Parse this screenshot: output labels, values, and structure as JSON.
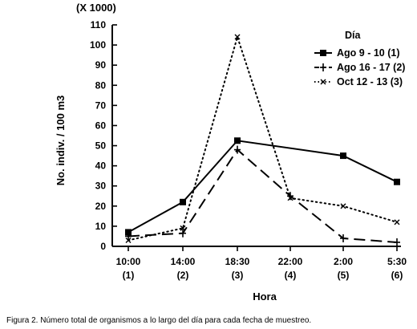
{
  "chart_data": {
    "type": "line",
    "multiplier_label": "(X 1000)",
    "ylabel": "No. indiv. / 100 m3",
    "xlabel": "Hora",
    "ylim": [
      0,
      110
    ],
    "yticks": [
      0,
      10,
      20,
      30,
      40,
      50,
      60,
      70,
      80,
      90,
      100,
      110
    ],
    "ytick_labels": [
      "0",
      "10",
      "20",
      "30",
      "40",
      "50",
      "60",
      "70",
      "80",
      "90",
      "100",
      "110"
    ],
    "categories": [
      {
        "time": "10:00",
        "index": "(1)"
      },
      {
        "time": "14:00",
        "index": "(2)"
      },
      {
        "time": "18:30",
        "index": "(3)"
      },
      {
        "time": "22:00",
        "index": "(4)"
      },
      {
        "time": "2:00",
        "index": "(5)"
      },
      {
        "time": "5:30",
        "index": "(6)"
      }
    ],
    "legend_title": "Día",
    "legend_position": "top-right",
    "grid": false,
    "series": [
      {
        "name": "Ago  9 - 10 (1)",
        "style": "solid",
        "marker": "square",
        "points": [
          [
            0,
            7
          ],
          [
            1,
            22
          ],
          [
            2,
            52.5
          ],
          [
            4,
            45
          ],
          [
            5,
            32
          ]
        ]
      },
      {
        "name": "Ago  16 - 17 (2)",
        "style": "dashed",
        "marker": "plus",
        "points": [
          [
            0,
            5
          ],
          [
            1,
            6.5
          ],
          [
            2,
            48
          ],
          [
            3,
            25
          ],
          [
            4,
            4
          ],
          [
            5,
            2
          ]
        ]
      },
      {
        "name": "Oct  12 - 13 (3)",
        "style": "dotted",
        "marker": "x",
        "points": [
          [
            0,
            3
          ],
          [
            1,
            9
          ],
          [
            2,
            104
          ],
          [
            3,
            24
          ],
          [
            4,
            20
          ],
          [
            5,
            12
          ]
        ]
      }
    ]
  },
  "caption": "Figura 2. Número total de organismos a lo largo del día para cada fecha de muestreo."
}
